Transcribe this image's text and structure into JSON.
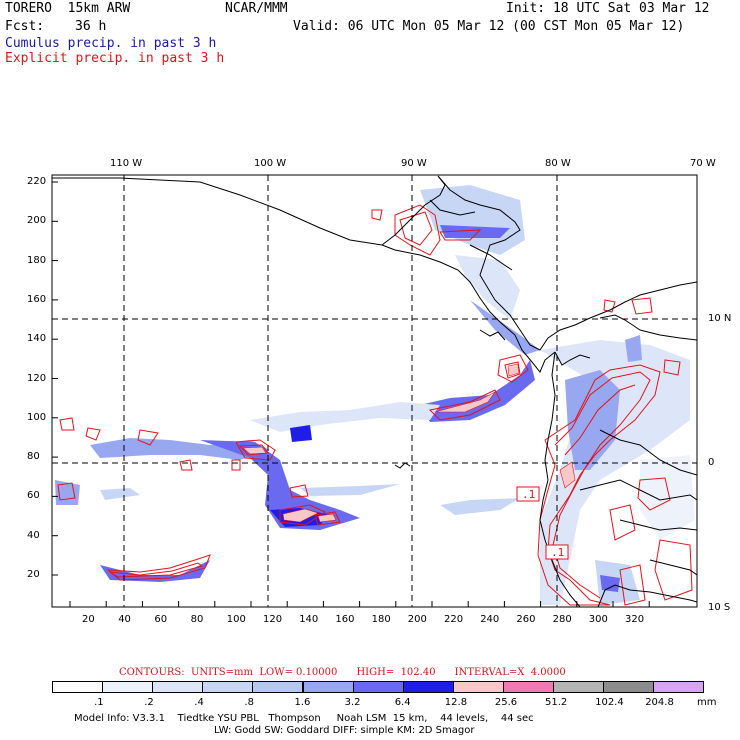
{
  "header": {
    "model": "TORERO  15km ARW",
    "org": "NCAR/MMM",
    "init": "Init: 18 UTC Sat 03 Mar 12",
    "fcst_label": "Fcst:",
    "fcst_value": "36 h",
    "valid": "Valid: 06 UTC Mon 05 Mar 12 (00 CST Mon 05 Mar 12)",
    "cumulus": "Cumulus precip. in past 3 h",
    "explicit": "Explicit precip. in past 3 h"
  },
  "map": {
    "top_lon_labels": [
      "110 W",
      "100 W",
      "90 W",
      "80 W",
      "70 W"
    ],
    "right_lat_labels": [
      "10 N",
      "0",
      "10 S"
    ],
    "y_grid_labels": [
      "220",
      "200",
      "180",
      "160",
      "140",
      "120",
      "100",
      "80",
      "60",
      "40",
      "20"
    ],
    "x_grid_labels": [
      "20",
      "40",
      "60",
      "80",
      "100",
      "120",
      "140",
      "160",
      "180",
      "200",
      "220",
      "240",
      "260",
      "280",
      "300",
      "320"
    ],
    "annotation_labels": [
      ".1",
      ".1"
    ]
  },
  "contours_line": "CONTOURS:  UNITS=mm  LOW= 0.10000      HIGH=  102.40      INTERVAL=X  4.0000",
  "colorbar": {
    "labels": [
      ".1",
      ".2",
      ".4",
      ".8",
      "1.6",
      "3.2",
      "6.4",
      "12.8",
      "25.6",
      "51.2",
      "102.4",
      "204.8"
    ],
    "unit": "mm",
    "colors": [
      "#ffffff",
      "#eef2fb",
      "#dde6f8",
      "#c7d6f5",
      "#b4c8f3",
      "#98a8f0",
      "#6a6af0",
      "#1e1ee8",
      "#f8c8c8",
      "#f07ab4",
      "#b4b4b4",
      "#8c8c8c",
      "#d8a4f8"
    ]
  },
  "model_info": {
    "line1": "Model Info: V3.3.1    Tiedtke YSU PBL   Thompson     Noah LSM  15 km,    44 levels,    44 sec",
    "line2": "LW: Godd SW: Goddard DIFF: simple KM: 2D Smagor"
  }
}
